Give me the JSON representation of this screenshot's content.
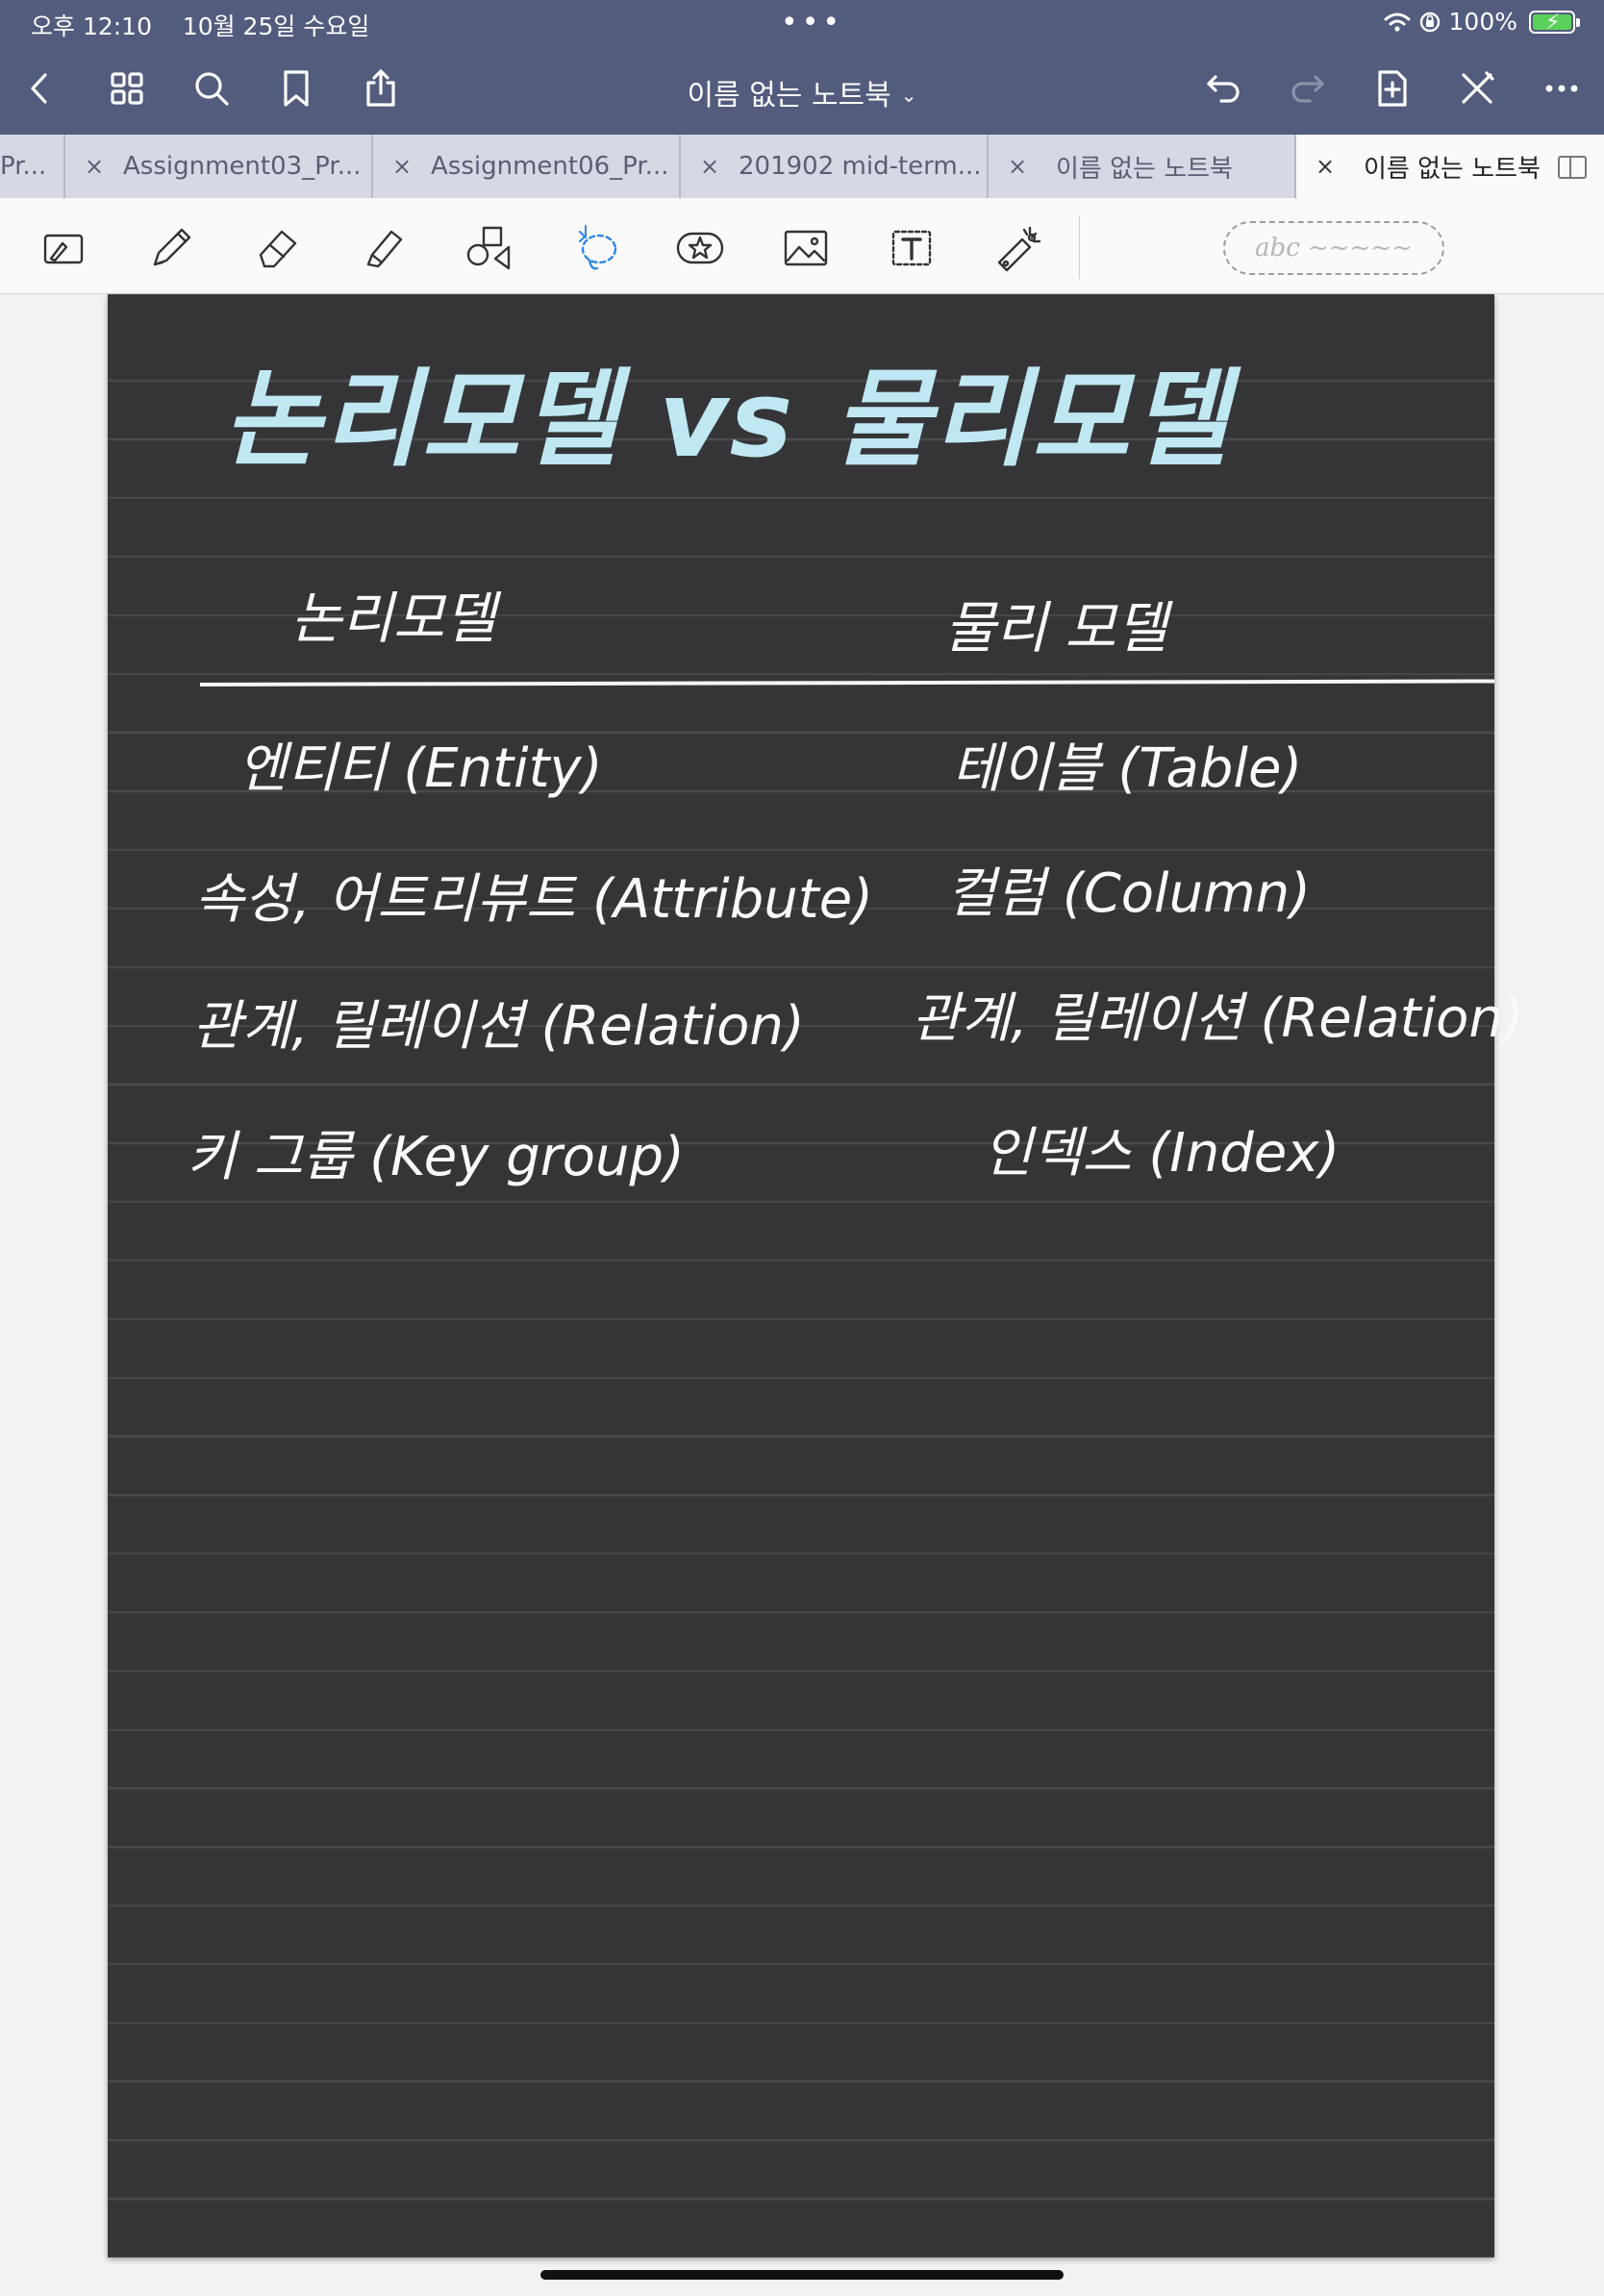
{
  "status": {
    "time": "오후 12:10",
    "date": "10월 25일 수요일",
    "battery": "100%",
    "dots": "•••"
  },
  "nav": {
    "title": "이름 없는 노트북",
    "title_chevron": "⌄"
  },
  "tabs": [
    {
      "label": "Pr...",
      "active": false
    },
    {
      "label": "Assignment03_Pr...",
      "active": false
    },
    {
      "label": "Assignment06_Pr...",
      "active": false
    },
    {
      "label": "201902 mid-term...",
      "active": false
    },
    {
      "label": "이름 없는 노트북",
      "active": false
    },
    {
      "label": "이름 없는 노트북",
      "active": true
    }
  ],
  "tab_close_glyph": "×",
  "toolbar": {
    "text_box_placeholder": "abc ~~~~~"
  },
  "note": {
    "title": "논리모델 vs 물리모델",
    "columns": [
      "논리모델",
      "물리 모델"
    ],
    "rows": [
      [
        "엔티티 (Entity)",
        "테이블 (Table)"
      ],
      [
        "속성, 어트리뷰트 (Attribute)",
        "컬럼 (Column)"
      ],
      [
        "관계, 릴레이션 (Relation)",
        "관계, 릴레이션 (Relation)"
      ],
      [
        "키 그룹 (Key group)",
        "인덱스 (Index)"
      ]
    ]
  },
  "colors": {
    "nav_bg": "#535c7d",
    "page_bg": "#353538",
    "title_ink": "#bfe8f2",
    "ink": "#fafafa",
    "lasso_blue": "#2f86e8"
  }
}
